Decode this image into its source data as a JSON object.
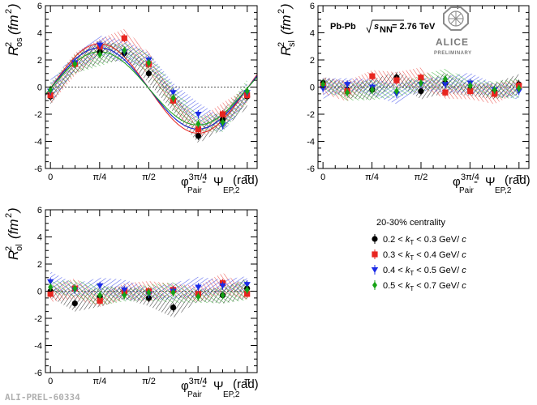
{
  "chart_data": [
    {
      "type": "scatter",
      "panel": "os",
      "ylabel": {
        "main": "R",
        "sup": "2",
        "sub": "os",
        "unit": "(fm",
        "unit_sup": "2",
        "unit_close": ")"
      },
      "xlabel": {
        "phi": "φ",
        "phi_sub": "Pair",
        "minus": " - ",
        "psi": "Ψ",
        "psi_sub": "EP,2",
        "unit": "(rad)"
      },
      "xlim": [
        -0.08,
        3.3
      ],
      "ylim": [
        -6,
        6
      ],
      "yticks": [
        -6,
        -4,
        -2,
        0,
        2,
        4,
        6
      ],
      "xticklabels": [
        "0",
        "π/4",
        "π/2",
        "3π/4",
        "π"
      ],
      "series": [
        {
          "color": "#000000",
          "marker": "circle",
          "x": [
            0.0,
            0.39,
            0.79,
            1.18,
            1.57,
            1.96,
            2.36,
            2.75,
            3.14
          ],
          "y": [
            -0.7,
            1.7,
            2.6,
            2.5,
            1.0,
            -1.0,
            -3.6,
            -2.4,
            -0.7
          ]
        },
        {
          "color": "#e8251f",
          "marker": "square",
          "x": [
            0.0,
            0.39,
            0.79,
            1.18,
            1.57,
            1.96,
            2.36,
            2.75,
            3.14
          ],
          "y": [
            -0.6,
            1.7,
            3.0,
            3.6,
            1.7,
            -1.0,
            -3.1,
            -2.0,
            -0.6
          ]
        },
        {
          "color": "#1b2be6",
          "marker": "triangle",
          "x": [
            0.0,
            0.39,
            0.79,
            1.18,
            1.57,
            1.96,
            2.36,
            2.75,
            3.14
          ],
          "y": [
            -0.3,
            1.8,
            3.1,
            2.6,
            2.0,
            -0.4,
            -2.0,
            -2.8,
            -0.4
          ]
        },
        {
          "color": "#17a315",
          "marker": "diamond",
          "x": [
            0.0,
            0.39,
            0.79,
            1.18,
            1.57,
            1.96,
            2.36,
            2.75,
            3.14
          ],
          "y": [
            -0.2,
            1.7,
            2.4,
            2.7,
            1.8,
            -0.8,
            -2.7,
            -2.6,
            -0.3
          ]
        }
      ],
      "fits": [
        {
          "color": "#000000",
          "amplitude": 3.0
        },
        {
          "color": "#e8251f",
          "amplitude": 3.3
        },
        {
          "color": "#1b2be6",
          "amplitude": 3.0
        },
        {
          "color": "#17a315",
          "amplitude": 2.7
        }
      ]
    },
    {
      "type": "scatter",
      "panel": "sl",
      "ylabel": {
        "main": "R",
        "sup": "2",
        "sub": "sl",
        "unit": "(fm",
        "unit_sup": "2",
        "unit_close": ")"
      },
      "xlabel": {
        "phi": "φ",
        "phi_sub": "Pair",
        "minus": " - ",
        "psi": "Ψ",
        "psi_sub": "EP,2",
        "unit": "(rad)"
      },
      "xlim": [
        -0.08,
        3.3
      ],
      "ylim": [
        -6,
        6
      ],
      "yticks": [
        -6,
        -4,
        -2,
        0,
        2,
        4,
        6
      ],
      "xticklabels": [
        "0",
        "π/4",
        "π/2",
        "3π/4",
        "π"
      ],
      "series": [
        {
          "color": "#000000",
          "marker": "circle",
          "x": [
            0.0,
            0.39,
            0.79,
            1.18,
            1.57,
            1.96,
            2.36,
            2.75,
            3.14
          ],
          "y": [
            0.3,
            -0.2,
            -0.2,
            0.7,
            -0.3,
            0.3,
            -0.2,
            -0.3,
            0.2
          ]
        },
        {
          "color": "#e8251f",
          "marker": "square",
          "x": [
            0.0,
            0.39,
            0.79,
            1.18,
            1.57,
            1.96,
            2.36,
            2.75,
            3.14
          ],
          "y": [
            0.1,
            -0.3,
            0.8,
            0.5,
            0.7,
            -0.4,
            -0.3,
            -0.5,
            0.1
          ]
        },
        {
          "color": "#1b2be6",
          "marker": "triangle",
          "x": [
            0.0,
            0.39,
            0.79,
            1.18,
            1.57,
            1.96,
            2.36,
            2.75,
            3.14
          ],
          "y": [
            -0.1,
            0.2,
            0.0,
            -0.5,
            0.2,
            0.2,
            0.3,
            -0.2,
            -0.3
          ]
        },
        {
          "color": "#17a315",
          "marker": "diamond",
          "x": [
            0.0,
            0.39,
            0.79,
            1.18,
            1.57,
            1.96,
            2.36,
            2.75,
            3.14
          ],
          "y": [
            0.2,
            -0.4,
            -0.2,
            -0.3,
            0.3,
            0.6,
            0.1,
            -0.2,
            -0.1
          ]
        }
      ]
    },
    {
      "type": "scatter",
      "panel": "ol",
      "ylabel": {
        "main": "R",
        "sup": "2",
        "sub": "ol",
        "unit": "(fm",
        "unit_sup": "2",
        "unit_close": ")"
      },
      "xlabel": {
        "phi": "φ",
        "phi_sub": "Pair",
        "minus": " - ",
        "psi": "Ψ",
        "psi_sub": "EP,2",
        "unit": "(rad)"
      },
      "xlim": [
        -0.08,
        3.3
      ],
      "ylim": [
        -6,
        6
      ],
      "yticks": [
        -6,
        -4,
        -2,
        0,
        2,
        4,
        6
      ],
      "xticklabels": [
        "0",
        "π/4",
        "π/2",
        "3π/4",
        "π"
      ],
      "series": [
        {
          "color": "#000000",
          "marker": "circle",
          "x": [
            0.0,
            0.39,
            0.79,
            1.18,
            1.57,
            1.96,
            2.36,
            2.75,
            3.14
          ],
          "y": [
            0.0,
            -0.9,
            -0.4,
            -0.1,
            -0.5,
            -1.2,
            -0.3,
            -0.3,
            0.2
          ]
        },
        {
          "color": "#e8251f",
          "marker": "square",
          "x": [
            0.0,
            0.39,
            0.79,
            1.18,
            1.57,
            1.96,
            2.36,
            2.75,
            3.14
          ],
          "y": [
            -0.2,
            0.2,
            -0.7,
            0.0,
            0.0,
            0.1,
            -0.2,
            0.6,
            -0.2
          ]
        },
        {
          "color": "#1b2be6",
          "marker": "triangle",
          "x": [
            0.0,
            0.39,
            0.79,
            1.18,
            1.57,
            1.96,
            2.36,
            2.75,
            3.14
          ],
          "y": [
            0.7,
            0.1,
            0.4,
            0.1,
            -0.2,
            0.0,
            0.3,
            0.4,
            0.5
          ]
        },
        {
          "color": "#17a315",
          "marker": "diamond",
          "x": [
            0.0,
            0.39,
            0.79,
            1.18,
            1.57,
            1.96,
            2.36,
            2.75,
            3.14
          ],
          "y": [
            0.3,
            0.2,
            -0.3,
            -0.3,
            -0.1,
            -0.1,
            -0.4,
            -0.3,
            0.1
          ]
        }
      ]
    }
  ],
  "collision": {
    "system": "Pb-Pb",
    "sqrt_s": "s",
    "sub": "NN",
    "energy": "= 2.76 TeV"
  },
  "logo": {
    "name": "ALICE",
    "tag": "PRELIMINARY"
  },
  "legend": {
    "title": "20-30% centrality",
    "entries": [
      {
        "color": "#000000",
        "marker": "circle",
        "lo": "0.2 < ",
        "k": "k",
        "ksub": "T",
        "hi": " < 0.3 GeV/ ",
        "c": "c"
      },
      {
        "color": "#e8251f",
        "marker": "square",
        "lo": "0.3 < ",
        "k": "k",
        "ksub": "T",
        "hi": " < 0.4 GeV/ ",
        "c": "c"
      },
      {
        "color": "#1b2be6",
        "marker": "triangle",
        "lo": "0.4 < ",
        "k": "k",
        "ksub": "T",
        "hi": " < 0.5 GeV/ ",
        "c": "c"
      },
      {
        "color": "#17a315",
        "marker": "diamond",
        "lo": "0.5 < ",
        "k": "k",
        "ksub": "T",
        "hi": " < 0.7 GeV/ ",
        "c": "c"
      }
    ]
  },
  "watermark": "ALI-PREL-60334"
}
